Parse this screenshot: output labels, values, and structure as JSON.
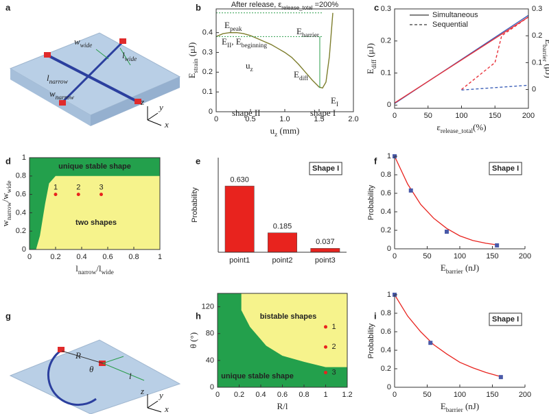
{
  "illustrations": [
    {
      "panel": "a",
      "labels": [
        [
          "w",
          "wide"
        ],
        [
          "l",
          "wide"
        ],
        [
          "l",
          "narrow"
        ],
        [
          "w",
          "narrow"
        ],
        [
          "z"
        ],
        [
          "y"
        ],
        [
          "x"
        ]
      ]
    },
    {
      "panel": "g",
      "labels": [
        [
          "R"
        ],
        [
          "θ"
        ],
        [
          "l"
        ],
        [
          "z"
        ],
        [
          "y"
        ],
        [
          "x"
        ]
      ]
    }
  ],
  "chart_data": [
    {
      "panel": "b",
      "type": "line",
      "title": [
        "After release, ε",
        "release_total",
        " =200%"
      ],
      "xlabel": [
        "u",
        "z",
        " (mm)"
      ],
      "ylabel": [
        "E",
        "strain",
        " (μJ)"
      ],
      "xlim": [
        0,
        2
      ],
      "xticks": [
        0,
        0.5,
        {
          "value": 1,
          "label": "1.0"
        },
        1.5,
        {
          "value": 2,
          "label": "2.0"
        }
      ],
      "ylim": [
        0,
        0.52
      ],
      "yticks": [
        0,
        0.1,
        0.2,
        0.3,
        0.4
      ],
      "series": [
        {
          "color": "#7d7d2c",
          "dash": false,
          "x": [
            0,
            0.1,
            0.2,
            0.3,
            0.4,
            0.5,
            0.6,
            0.7,
            0.8,
            0.9,
            1.0,
            1.1,
            1.2,
            1.3,
            1.4,
            1.5,
            1.55,
            1.6,
            1.65,
            1.7
          ],
          "values": [
            0.38,
            0.395,
            0.4,
            0.4,
            0.395,
            0.385,
            0.37,
            0.355,
            0.34,
            0.32,
            0.3,
            0.275,
            0.24,
            0.2,
            0.16,
            0.125,
            0.12,
            0.15,
            0.28,
            0.5
          ]
        }
      ],
      "annotations": [
        [
          "E",
          "peak"
        ],
        [
          "E",
          "barrier"
        ],
        [
          "E",
          "II",
          ", E",
          "beginning"
        ],
        [
          "E",
          "diff"
        ],
        [
          "E",
          "I"
        ],
        [
          "u",
          "z"
        ],
        "shape II",
        "shape I"
      ]
    },
    {
      "panel": "c",
      "type": "line",
      "xlabel": [
        "ε",
        "release_total",
        "(%)"
      ],
      "ylabel": [
        "E",
        "diff",
        " (μJ)"
      ],
      "y2label": [
        "E",
        "barrier",
        " (μJ)"
      ],
      "xlim": [
        0,
        200
      ],
      "xticks": [
        0,
        50,
        100,
        150,
        200
      ],
      "ylim": [
        -0.01,
        0.3
      ],
      "yticks": [
        0,
        0.1,
        0.2,
        0.3
      ],
      "y2lim": [
        -0.07,
        0.3
      ],
      "y2ticks": [
        0,
        0.1,
        0.2,
        0.3
      ],
      "legend": [
        {
          "name": "Simultaneous",
          "dash": false
        },
        {
          "name": "Sequential",
          "dash": true
        }
      ],
      "series": [
        {
          "color": "#3b5fb8",
          "dash": false,
          "x": [
            0,
            200
          ],
          "values": [
            0.005,
            0.28
          ]
        },
        {
          "color": "#e8313a",
          "dash": false,
          "axis": "y2",
          "x": [
            0,
            200
          ],
          "values": [
            -0.05,
            0.27
          ]
        },
        {
          "color": "#e8313a",
          "dash": true,
          "axis": "y2",
          "x": [
            100,
            150,
            160,
            200
          ],
          "values": [
            0,
            0.1,
            0.2,
            0.27
          ]
        },
        {
          "color": "#3b5fb8",
          "dash": true,
          "x": [
            100,
            200
          ],
          "values": [
            0.047,
            0.062
          ]
        }
      ]
    },
    {
      "panel": "d",
      "type": "region",
      "xlabel": [
        "l",
        "narrow",
        "/l",
        "wide"
      ],
      "ylabel": [
        "w",
        "narrow",
        "/w",
        "wide"
      ],
      "xlim": [
        0,
        1
      ],
      "xticks": [
        0,
        0.2,
        0.4,
        0.6,
        0.8,
        1
      ],
      "ylim": [
        0,
        1
      ],
      "yticks": [
        0,
        0.2,
        0.4,
        0.6,
        0.8,
        1
      ],
      "background": "#23a04c",
      "regions": [
        {
          "color": "#f6f38c",
          "polygon_x": [
            0.05,
            0.08,
            0.12,
            0.15,
            0.2,
            1,
            1
          ],
          "polygon_y": [
            0,
            0.15,
            0.5,
            0.72,
            0.8,
            0.8,
            0
          ]
        }
      ],
      "points": {
        "color": "#e8231e",
        "x": [
          0.2,
          0.375,
          0.55
        ],
        "values": [
          0.6,
          0.6,
          0.6
        ],
        "labels": [
          "1",
          "2",
          "3"
        ]
      },
      "annotations": [
        "unique stable shape",
        "two shapes"
      ]
    },
    {
      "panel": "e",
      "type": "bar",
      "ylabel": "Probability",
      "ylim": [
        0,
        0.9
      ],
      "categories": [
        "point1",
        "point2",
        "point3"
      ],
      "values": [
        0.63,
        0.185,
        0.037
      ],
      "value_labels": [
        "0.630",
        "0.185",
        "0.037"
      ],
      "color": "#e8231e",
      "annotations": [
        "Shape I"
      ]
    },
    {
      "panel": "f",
      "type": "scatter",
      "xlabel": [
        "E",
        "barrier",
        " (nJ)"
      ],
      "ylabel": "Probability",
      "xlim": [
        0,
        200
      ],
      "xticks": [
        0,
        50,
        100,
        150,
        200
      ],
      "ylim": [
        0,
        1
      ],
      "yticks": [
        0,
        0.2,
        0.4,
        0.6,
        0.8,
        1
      ],
      "color": "#4a5aa8",
      "x": [
        0,
        25,
        80,
        157
      ],
      "values": [
        1,
        0.63,
        0.185,
        0.037
      ],
      "fit": {
        "color": "#e8231e",
        "x": [
          0,
          20,
          40,
          60,
          80,
          100,
          120,
          140,
          160
        ],
        "values": [
          1,
          0.7,
          0.48,
          0.33,
          0.22,
          0.14,
          0.09,
          0.06,
          0.04
        ]
      },
      "annotations": [
        "Shape I"
      ]
    },
    {
      "panel": "h",
      "type": "region",
      "xlabel": "R/l",
      "ylabel": "θ (°)",
      "xlim": [
        0,
        1.2
      ],
      "xticks": [
        0,
        0.2,
        0.4,
        0.6,
        0.8,
        1,
        1.2
      ],
      "ylim": [
        0,
        140
      ],
      "yticks": [
        0,
        40,
        80,
        120
      ],
      "background": "#23a04c",
      "regions": [
        {
          "color": "#f6f38c",
          "polygon_x": [
            0.22,
            0.22,
            0.3,
            0.45,
            0.6,
            0.8,
            1,
            1.2,
            1.2
          ],
          "polygon_y": [
            140,
            115,
            90,
            62,
            47,
            38,
            30,
            30,
            140
          ]
        }
      ],
      "points": {
        "color": "#e8231e",
        "x": [
          1,
          1,
          1
        ],
        "values": [
          90,
          60,
          22
        ],
        "labels": [
          "1",
          "2",
          "3"
        ]
      },
      "annotations": [
        "bistable shapes",
        "unique stable shape"
      ]
    },
    {
      "panel": "i",
      "type": "scatter",
      "xlabel": [
        "E",
        "barrier",
        " (nJ)"
      ],
      "ylabel": "Probability",
      "xlim": [
        0,
        200
      ],
      "xticks": [
        0,
        50,
        100,
        150,
        200
      ],
      "ylim": [
        0,
        1
      ],
      "yticks": [
        0,
        0.2,
        0.4,
        0.6,
        0.8,
        1
      ],
      "color": "#4a5aa8",
      "x": [
        0,
        55,
        163
      ],
      "values": [
        1,
        0.48,
        0.11
      ],
      "fit": {
        "color": "#e8231e",
        "x": [
          0,
          20,
          40,
          60,
          80,
          100,
          120,
          140,
          160
        ],
        "values": [
          1,
          0.77,
          0.6,
          0.46,
          0.36,
          0.27,
          0.21,
          0.16,
          0.12
        ]
      },
      "annotations": [
        "Shape I"
      ]
    }
  ]
}
